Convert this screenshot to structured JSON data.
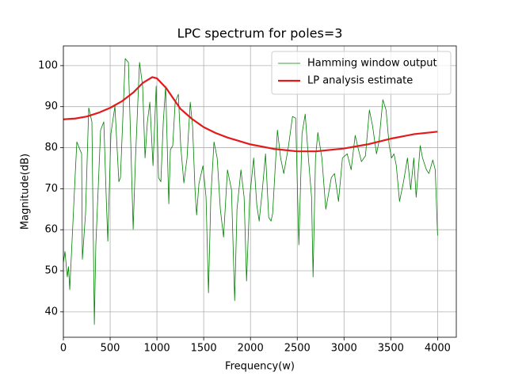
{
  "chart_data": {
    "type": "line",
    "title": "LPC spectrum for poles=3",
    "xlabel": "Frequency(w)",
    "ylabel": "Magnitude(dB)",
    "xlim": [
      0,
      4200
    ],
    "ylim": [
      33.8,
      104.8
    ],
    "xticks": [
      0,
      500,
      1000,
      1500,
      2000,
      2500,
      3000,
      3500,
      4000
    ],
    "yticks": [
      40,
      50,
      60,
      70,
      80,
      90,
      100
    ],
    "grid": true,
    "legend": "upper right",
    "series": [
      {
        "name": "Hamming window output",
        "color": "#008000",
        "width": 0.8,
        "x": [
          0,
          17,
          42,
          55,
          68,
          127,
          144,
          195,
          203,
          237,
          271,
          305,
          331,
          347,
          398,
          432,
          458,
          475,
          508,
          551,
          593,
          610,
          661,
          695,
          720,
          746,
          771,
          814,
          847,
          873,
          898,
          924,
          958,
          975,
          992,
          1017,
          1042,
          1068,
          1093,
          1127,
          1144,
          1169,
          1195,
          1229,
          1254,
          1288,
          1322,
          1356,
          1381,
          1407,
          1424,
          1449,
          1492,
          1525,
          1551,
          1576,
          1610,
          1644,
          1678,
          1712,
          1754,
          1797,
          1831,
          1856,
          1898,
          1932,
          1958,
          1992,
          2034,
          2068,
          2093,
          2127,
          2161,
          2195,
          2220,
          2237,
          2263,
          2288,
          2322,
          2356,
          2407,
          2449,
          2483,
          2517,
          2551,
          2585,
          2619,
          2653,
          2669,
          2695,
          2720,
          2763,
          2805,
          2831,
          2864,
          2898,
          2941,
          2983,
          3034,
          3076,
          3119,
          3144,
          3186,
          3229,
          3271,
          3305,
          3347,
          3373,
          3415,
          3449,
          3483,
          3508,
          3534,
          3559,
          3593,
          3636,
          3678,
          3712,
          3746,
          3771,
          3814,
          3839,
          3881,
          3907,
          3949,
          3975,
          4000
        ],
        "values": [
          52,
          54.7,
          48.5,
          51,
          45.4,
          73.7,
          81.4,
          78.5,
          52.8,
          64,
          89.7,
          86.3,
          36.9,
          56.3,
          84.3,
          86.3,
          67.9,
          57.2,
          83.4,
          90.1,
          71.7,
          72.7,
          101.7,
          100.8,
          81.4,
          60.1,
          77.5,
          100.8,
          95,
          77.5,
          86.3,
          91.1,
          75.6,
          85.3,
          95,
          72.7,
          71.7,
          86.3,
          95,
          66.3,
          79.5,
          80.5,
          91.1,
          93,
          80.5,
          71.4,
          77.5,
          91.1,
          85.3,
          69.8,
          63.6,
          71.2,
          75.6,
          67.9,
          44.6,
          67.9,
          81.4,
          77.5,
          65,
          58.2,
          74.6,
          69.8,
          42.7,
          65,
          74.6,
          67.9,
          47.5,
          67.9,
          77.5,
          65.9,
          62.1,
          69.8,
          78.5,
          63,
          62.1,
          64,
          74.6,
          84.3,
          77.5,
          73.7,
          80.5,
          87.6,
          87.2,
          56.3,
          83.4,
          88.2,
          77.5,
          67.9,
          48.5,
          77.5,
          83.7,
          77.5,
          65,
          68.3,
          72.7,
          73.7,
          66.9,
          77.5,
          78.5,
          74.6,
          83,
          80.5,
          76.6,
          78,
          89.2,
          85.3,
          78.5,
          81.4,
          91.7,
          89.2,
          80.5,
          77.5,
          78.5,
          75.6,
          66.9,
          71.7,
          77.5,
          69.8,
          77.5,
          67.9,
          80.5,
          77.5,
          74.6,
          73.7,
          77,
          74.6,
          58.6
        ]
      },
      {
        "name": "LP analysis estimate",
        "color": "#e31a1c",
        "width": 2.2,
        "x": [
          0,
          125,
          250,
          375,
          500,
          625,
          750,
          850,
          950,
          1000,
          1100,
          1175,
          1250,
          1375,
          1500,
          1625,
          1750,
          2000,
          2250,
          2500,
          2700,
          3000,
          3250,
          3500,
          3750,
          4000
        ],
        "values": [
          86.9,
          87.1,
          87.6,
          88.5,
          89.7,
          91.3,
          93.5,
          95.8,
          97.2,
          96.9,
          94.5,
          92,
          89.5,
          87,
          85,
          83.6,
          82.5,
          80.8,
          79.7,
          79.1,
          79.1,
          79.8,
          80.8,
          82.2,
          83.3,
          83.9
        ]
      }
    ]
  }
}
